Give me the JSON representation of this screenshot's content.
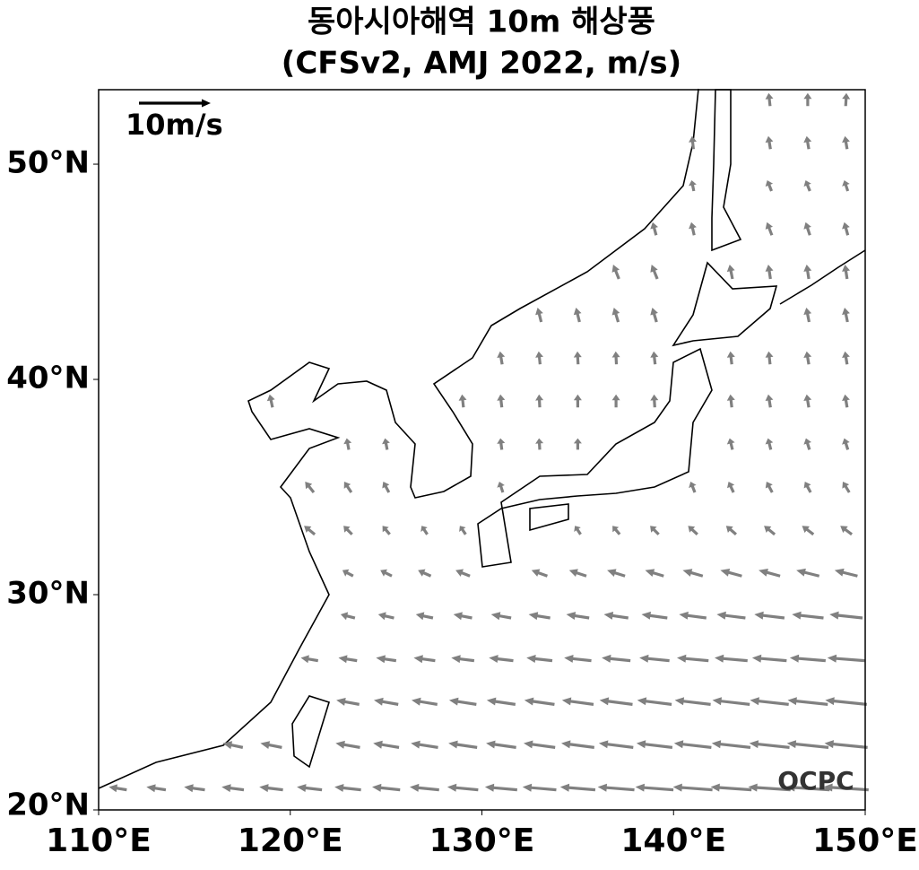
{
  "chart_data": {
    "type": "quiver",
    "title": "동아시아해역 10m 해상풍",
    "subtitle": "(CFSv2, AMJ 2022, m/s)",
    "key_label": "10m/s",
    "key_value": 10,
    "logo": "OCPC",
    "color": "#808080",
    "xlim": [
      110,
      150
    ],
    "xticks": [
      {
        "value": 110,
        "label": "110°E"
      },
      {
        "value": 120,
        "label": "120°E"
      },
      {
        "value": 130,
        "label": "130°E"
      },
      {
        "value": 140,
        "label": "140°E"
      },
      {
        "value": 150,
        "label": "150°E"
      }
    ],
    "ylim": [
      20,
      53.46
    ],
    "yticks": [
      {
        "value": 20,
        "label": "20°N"
      },
      {
        "value": 30,
        "label": "30°N"
      },
      {
        "value": 40,
        "label": "40°N"
      },
      {
        "value": 50,
        "label": "50°N"
      }
    ],
    "lons": [
      111,
      113,
      115,
      117,
      119,
      121,
      123,
      125,
      127,
      129,
      131,
      133,
      135,
      137,
      139,
      141,
      143,
      145,
      147,
      149
    ],
    "lats": [
      21,
      23,
      25,
      27,
      29,
      31,
      33,
      35,
      37,
      39,
      41,
      43,
      45,
      47,
      49,
      51,
      53
    ],
    "u": [
      [
        -2.5,
        -2.7,
        -2.9,
        -3.1,
        -3.3,
        -3.5,
        -3.7,
        -3.9,
        -4.1,
        -4.3,
        -4.5,
        -4.7,
        -4.9,
        -5.1,
        -5.3,
        -5.5,
        -5.7,
        -5.9,
        -6.1,
        -6.3
      ],
      [
        null,
        null,
        null,
        -2.8,
        -3,
        null,
        -3.4,
        -3.6,
        -3.8,
        -4,
        -4.2,
        -4.4,
        -4.6,
        -4.8,
        -5,
        -5.2,
        -5.4,
        -5.6,
        -5.8,
        -6
      ],
      [
        null,
        null,
        null,
        null,
        null,
        null,
        -3.2,
        -3.4,
        -3.6,
        -3.8,
        -4,
        -4.2,
        -4.4,
        -4.6,
        -4.8,
        -5,
        -5.2,
        -5.4,
        -5.6,
        -5.8
      ],
      [
        null,
        null,
        null,
        null,
        null,
        -2.4,
        -2.6,
        -2.8,
        -3,
        -3.2,
        -3.4,
        -3.6,
        -3.8,
        -4,
        -4.2,
        -4.4,
        -4.6,
        -4.8,
        -5,
        -5.2
      ],
      [
        null,
        null,
        null,
        null,
        null,
        null,
        -2,
        -2.2,
        -2.4,
        -2.6,
        -2.8,
        -3,
        -3.2,
        -3.4,
        -3.6,
        -3.8,
        -4,
        -4.2,
        -4.4,
        -4.6
      ],
      [
        null,
        null,
        null,
        null,
        null,
        null,
        -1.5,
        -1.6,
        -1.8,
        -2,
        null,
        -2.2,
        -2.4,
        -2.5,
        -2.6,
        -2.8,
        -3,
        -3,
        -3.2,
        -3.2
      ],
      [
        null,
        null,
        null,
        null,
        null,
        -1.5,
        -1.2,
        -1,
        -0.8,
        -0.8,
        null,
        null,
        -0.8,
        -1,
        -1.2,
        -1.3,
        -1.4,
        -1.5,
        -1.6,
        -1.6
      ],
      [
        null,
        null,
        null,
        null,
        null,
        -1.2,
        -1,
        -0.8,
        null,
        null,
        -0.5,
        null,
        null,
        null,
        null,
        -0.6,
        -0.7,
        -0.8,
        -0.8,
        -0.9
      ],
      [
        null,
        null,
        null,
        null,
        null,
        null,
        -0.3,
        -0.3,
        null,
        null,
        -0.2,
        -0.1,
        0,
        null,
        null,
        null,
        -0.4,
        -0.4,
        -0.5,
        -0.5
      ],
      [
        null,
        null,
        null,
        null,
        -0.4,
        null,
        null,
        null,
        null,
        -0.2,
        -0.2,
        -0.1,
        0,
        0,
        -0.1,
        null,
        -0.2,
        -0.3,
        -0.3,
        -0.3
      ],
      [
        null,
        null,
        null,
        null,
        null,
        null,
        null,
        null,
        null,
        null,
        -0.3,
        -0.2,
        -0.1,
        -0.1,
        -0.2,
        null,
        -0.2,
        -0.2,
        -0.3,
        -0.3
      ],
      [
        null,
        null,
        null,
        null,
        null,
        null,
        null,
        null,
        null,
        null,
        null,
        -0.5,
        -0.5,
        -0.6,
        -0.6,
        null,
        null,
        null,
        -0.4,
        -0.4
      ],
      [
        null,
        null,
        null,
        null,
        null,
        null,
        null,
        null,
        null,
        null,
        null,
        null,
        null,
        -0.8,
        -0.8,
        null,
        -0.4,
        -0.3,
        -0.3,
        -0.3
      ],
      [
        null,
        null,
        null,
        null,
        null,
        null,
        null,
        null,
        null,
        null,
        null,
        null,
        null,
        null,
        -0.5,
        -0.4,
        null,
        -0.7,
        -0.6,
        -0.5
      ],
      [
        null,
        null,
        null,
        null,
        null,
        null,
        null,
        null,
        null,
        null,
        null,
        null,
        null,
        null,
        null,
        -0.3,
        null,
        -0.6,
        -0.6,
        -0.5
      ],
      [
        null,
        null,
        null,
        null,
        null,
        null,
        null,
        null,
        null,
        null,
        null,
        null,
        null,
        null,
        null,
        -0.2,
        null,
        -0.3,
        -0.3,
        -0.3
      ],
      [
        null,
        null,
        null,
        null,
        null,
        null,
        null,
        null,
        null,
        null,
        null,
        null,
        null,
        null,
        null,
        null,
        null,
        -0.2,
        0,
        0.1
      ]
    ],
    "v": [
      [
        0.4,
        0.4,
        0.4,
        0.4,
        0.4,
        0.4,
        0.4,
        0.4,
        0.4,
        0.4,
        0.4,
        0.4,
        0.4,
        0.4,
        0.4,
        0.4,
        0.4,
        0.4,
        0.4,
        0.4
      ],
      [
        null,
        null,
        null,
        0.6,
        0.6,
        null,
        0.6,
        0.6,
        0.6,
        0.6,
        0.6,
        0.6,
        0.6,
        0.6,
        0.6,
        0.6,
        0.6,
        0.6,
        0.6,
        0.6
      ],
      [
        null,
        null,
        null,
        null,
        null,
        null,
        0.6,
        0.6,
        0.6,
        0.6,
        0.6,
        0.6,
        0.6,
        0.6,
        0.6,
        0.6,
        0.6,
        0.6,
        0.6,
        0.6
      ],
      [
        null,
        null,
        null,
        null,
        null,
        0.4,
        0.4,
        0.4,
        0.4,
        0.4,
        0.4,
        0.4,
        0.4,
        0.4,
        0.4,
        0.4,
        0.4,
        0.4,
        0.4,
        0.4
      ],
      [
        null,
        null,
        null,
        null,
        null,
        null,
        0.5,
        0.5,
        0.5,
        0.5,
        0.5,
        0.5,
        0.5,
        0.5,
        0.5,
        0.5,
        0.5,
        0.5,
        0.5,
        0.5
      ],
      [
        null,
        null,
        null,
        null,
        null,
        null,
        0.8,
        0.8,
        0.8,
        0.8,
        null,
        0.8,
        0.8,
        0.8,
        0.8,
        0.8,
        0.8,
        0.8,
        0.8,
        0.8
      ],
      [
        null,
        null,
        null,
        null,
        null,
        1.2,
        1.2,
        1.2,
        1.2,
        1.2,
        null,
        null,
        1.2,
        1.2,
        1.2,
        1.2,
        1.2,
        1.2,
        1.2,
        1.2
      ],
      [
        null,
        null,
        null,
        null,
        null,
        1.5,
        1.5,
        1.5,
        null,
        null,
        1.5,
        null,
        null,
        null,
        null,
        1.5,
        1.5,
        1.5,
        1.5,
        1.5
      ],
      [
        null,
        null,
        null,
        null,
        null,
        null,
        1.6,
        1.6,
        null,
        null,
        1.6,
        1.6,
        1.6,
        null,
        null,
        null,
        1.6,
        1.6,
        1.6,
        1.6
      ],
      [
        null,
        null,
        null,
        null,
        1.8,
        null,
        null,
        null,
        null,
        1.8,
        1.8,
        1.8,
        1.8,
        1.8,
        1.8,
        null,
        1.8,
        1.8,
        1.8,
        1.8
      ],
      [
        null,
        null,
        null,
        null,
        null,
        null,
        null,
        null,
        null,
        null,
        1.8,
        1.8,
        1.8,
        1.8,
        1.8,
        null,
        1.8,
        1.8,
        1.8,
        1.8
      ],
      [
        null,
        null,
        null,
        null,
        null,
        null,
        null,
        null,
        null,
        null,
        null,
        2,
        2,
        2,
        2,
        null,
        null,
        null,
        2,
        2
      ],
      [
        null,
        null,
        null,
        null,
        null,
        null,
        null,
        null,
        null,
        null,
        null,
        null,
        null,
        2,
        2,
        null,
        2,
        2,
        2,
        2
      ],
      [
        null,
        null,
        null,
        null,
        null,
        null,
        null,
        null,
        null,
        null,
        null,
        null,
        null,
        null,
        1.8,
        1.8,
        null,
        1.8,
        1.8,
        1.8
      ],
      [
        null,
        null,
        null,
        null,
        null,
        null,
        null,
        null,
        null,
        null,
        null,
        null,
        null,
        null,
        null,
        1.5,
        null,
        1.5,
        1.5,
        1.5
      ],
      [
        null,
        null,
        null,
        null,
        null,
        null,
        null,
        null,
        null,
        null,
        null,
        null,
        null,
        null,
        null,
        1.8,
        null,
        1.8,
        1.8,
        1.8
      ],
      [
        null,
        null,
        null,
        null,
        null,
        null,
        null,
        null,
        null,
        null,
        null,
        null,
        null,
        null,
        null,
        null,
        null,
        1.8,
        1.8,
        1.8
      ]
    ]
  }
}
